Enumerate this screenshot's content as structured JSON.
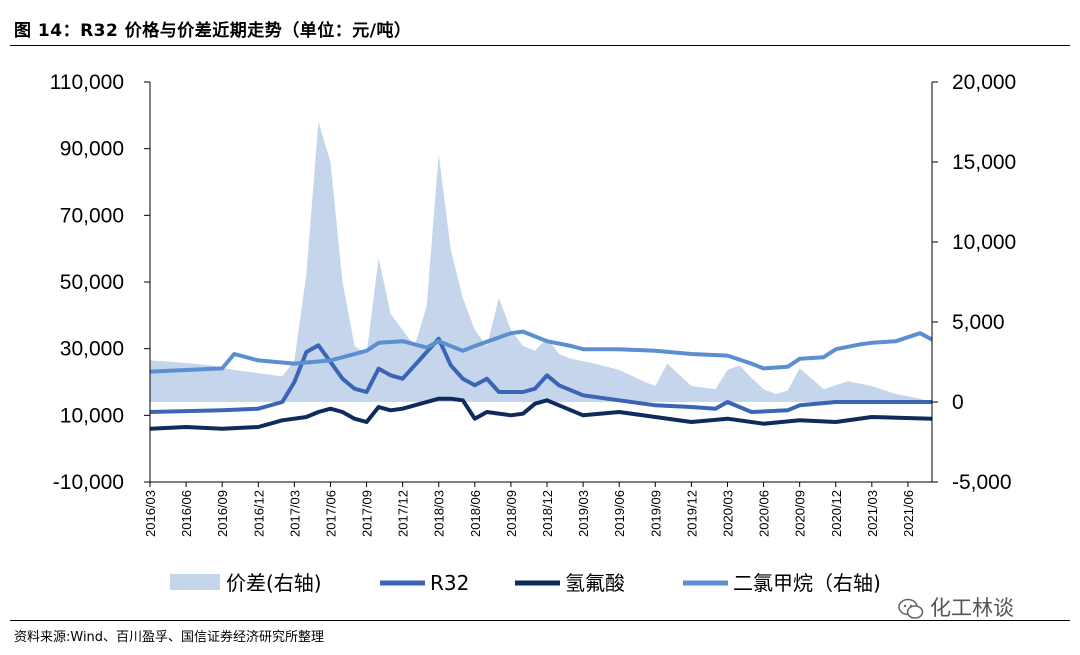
{
  "figure": {
    "title": "图 14：R32 价格与价差近期走势（单位：元/吨）",
    "source": "资料来源:Wind、百川盈孚、国信证券经济研究所整理",
    "watermark": "化工林谈"
  },
  "chart_data": {
    "type": "line",
    "title": "图 14：R32 价格与价差近期走势（单位：元/吨）",
    "left_axis": {
      "ticks": [
        "110,000",
        "90,000",
        "70,000",
        "50,000",
        "30,000",
        "10,000",
        "-10,000"
      ],
      "values": [
        110000,
        90000,
        70000,
        50000,
        30000,
        10000,
        -10000
      ],
      "range": [
        -10000,
        110000
      ]
    },
    "right_axis": {
      "ticks": [
        "20,000",
        "15,000",
        "10,000",
        "5,000",
        "0",
        "-5,000"
      ],
      "values": [
        20000,
        15000,
        10000,
        5000,
        0,
        -5000
      ],
      "range": [
        -5000,
        20000
      ]
    },
    "x_ticks": [
      "2016/03",
      "2016/06",
      "2016/09",
      "2016/12",
      "2017/03",
      "2017/06",
      "2017/09",
      "2017/12",
      "2018/03",
      "2018/06",
      "2018/09",
      "2018/12",
      "2019/03",
      "2019/06",
      "2019/09",
      "2019/12",
      "2020/03",
      "2020/06",
      "2020/09",
      "2020/12",
      "2021/03",
      "2021/06"
    ],
    "legend": {
      "position": "bottom",
      "items": [
        "价差(右轴)",
        "R32",
        "氢氟酸",
        "二氯甲烷（右轴)"
      ]
    },
    "series": [
      {
        "name": "价差(右轴)",
        "axis": "right",
        "kind": "area",
        "color": "#c5d5ec",
        "x": [
          "2016/03",
          "2016/05",
          "2016/08",
          "2016/10",
          "2016/12",
          "2017/02",
          "2017/03",
          "2017/04",
          "2017/05",
          "2017/06",
          "2017/07",
          "2017/08",
          "2017/09",
          "2017/10",
          "2017/11",
          "2017/12",
          "2018/01",
          "2018/02",
          "2018/03",
          "2018/04",
          "2018/05",
          "2018/06",
          "2018/07",
          "2018/08",
          "2018/09",
          "2018/10",
          "2018/11",
          "2018/12",
          "2019/01",
          "2019/02",
          "2019/04",
          "2019/06",
          "2019/08",
          "2019/09",
          "2019/10",
          "2019/12",
          "2020/02",
          "2020/03",
          "2020/04",
          "2020/05",
          "2020/06",
          "2020/07",
          "2020/08",
          "2020/09",
          "2020/11",
          "2021/01",
          "2021/03",
          "2021/05",
          "2021/07",
          "2021/08"
        ],
        "values": [
          2600,
          2500,
          2300,
          2000,
          1800,
          1600,
          2600,
          8000,
          17500,
          15000,
          7500,
          3500,
          3000,
          9000,
          5500,
          4500,
          3500,
          6000,
          15500,
          9500,
          6500,
          4500,
          3500,
          6500,
          4500,
          3500,
          3200,
          4000,
          3000,
          2700,
          2400,
          2000,
          1300,
          1000,
          2400,
          1000,
          800,
          2000,
          2300,
          1500,
          800,
          500,
          700,
          2100,
          800,
          1300,
          1000,
          500,
          200,
          0
        ]
      },
      {
        "name": "R32",
        "axis": "left",
        "kind": "line",
        "color": "#3c64b4",
        "x": [
          "2016/03",
          "2016/09",
          "2016/12",
          "2017/02",
          "2017/03",
          "2017/04",
          "2017/05",
          "2017/06",
          "2017/07",
          "2017/08",
          "2017/09",
          "2017/10",
          "2017/11",
          "2017/12",
          "2018/01",
          "2018/02",
          "2018/03",
          "2018/04",
          "2018/05",
          "2018/06",
          "2018/07",
          "2018/08",
          "2018/09",
          "2018/10",
          "2018/11",
          "2018/12",
          "2019/01",
          "2019/03",
          "2019/06",
          "2019/09",
          "2019/12",
          "2020/02",
          "2020/03",
          "2020/05",
          "2020/08",
          "2020/09",
          "2020/12",
          "2021/03",
          "2021/06",
          "2021/08"
        ],
        "values": [
          11000,
          11500,
          12000,
          14000,
          20000,
          29000,
          31000,
          26000,
          21000,
          18000,
          17000,
          24000,
          22000,
          21000,
          25000,
          29000,
          33000,
          25000,
          21000,
          19000,
          21000,
          17000,
          17000,
          17000,
          18000,
          22000,
          19000,
          16000,
          14500,
          13000,
          12500,
          12000,
          14000,
          11000,
          11500,
          13000,
          14000,
          14000,
          14000,
          14000
        ]
      },
      {
        "name": "氢氟酸",
        "axis": "left",
        "kind": "line",
        "color": "#0f2a5c",
        "x": [
          "2016/03",
          "2016/06",
          "2016/09",
          "2016/12",
          "2017/02",
          "2017/04",
          "2017/05",
          "2017/06",
          "2017/07",
          "2017/08",
          "2017/09",
          "2017/10",
          "2017/11",
          "2017/12",
          "2018/01",
          "2018/02",
          "2018/03",
          "2018/04",
          "2018/05",
          "2018/06",
          "2018/07",
          "2018/09",
          "2018/10",
          "2018/11",
          "2018/12",
          "2019/01",
          "2019/03",
          "2019/06",
          "2019/09",
          "2019/12",
          "2020/03",
          "2020/06",
          "2020/09",
          "2020/12",
          "2021/03",
          "2021/08"
        ],
        "values": [
          6000,
          6500,
          6000,
          6500,
          8500,
          9500,
          11000,
          12000,
          11000,
          9000,
          8000,
          12500,
          11500,
          12000,
          13000,
          14000,
          15000,
          15000,
          14500,
          9000,
          11000,
          10000,
          10500,
          13500,
          14500,
          13000,
          10000,
          11000,
          9500,
          8000,
          9000,
          7500,
          8500,
          8000,
          9500,
          9000
        ]
      },
      {
        "name": "二氯甲烷（右轴)",
        "axis": "right",
        "kind": "line",
        "color": "#5b8fd0",
        "x": [
          "2016/03",
          "2016/09",
          "2016/10",
          "2016/12",
          "2017/03",
          "2017/06",
          "2017/09",
          "2017/10",
          "2017/12",
          "2018/02",
          "2018/03",
          "2018/05",
          "2018/06",
          "2018/09",
          "2018/10",
          "2018/12",
          "2019/02",
          "2019/03",
          "2019/06",
          "2019/09",
          "2019/12",
          "2020/03",
          "2020/05",
          "2020/06",
          "2020/08",
          "2020/09",
          "2020/11",
          "2020/12",
          "2021/02",
          "2021/03",
          "2021/05",
          "2021/07",
          "2021/08"
        ],
        "values": [
          1900,
          2100,
          3000,
          2600,
          2400,
          2600,
          3200,
          3700,
          3800,
          3400,
          3800,
          3200,
          3500,
          4300,
          4400,
          3800,
          3500,
          3300,
          3300,
          3200,
          3000,
          2900,
          2400,
          2100,
          2200,
          2700,
          2800,
          3300,
          3600,
          3700,
          3800,
          4300,
          3900
        ]
      }
    ]
  }
}
